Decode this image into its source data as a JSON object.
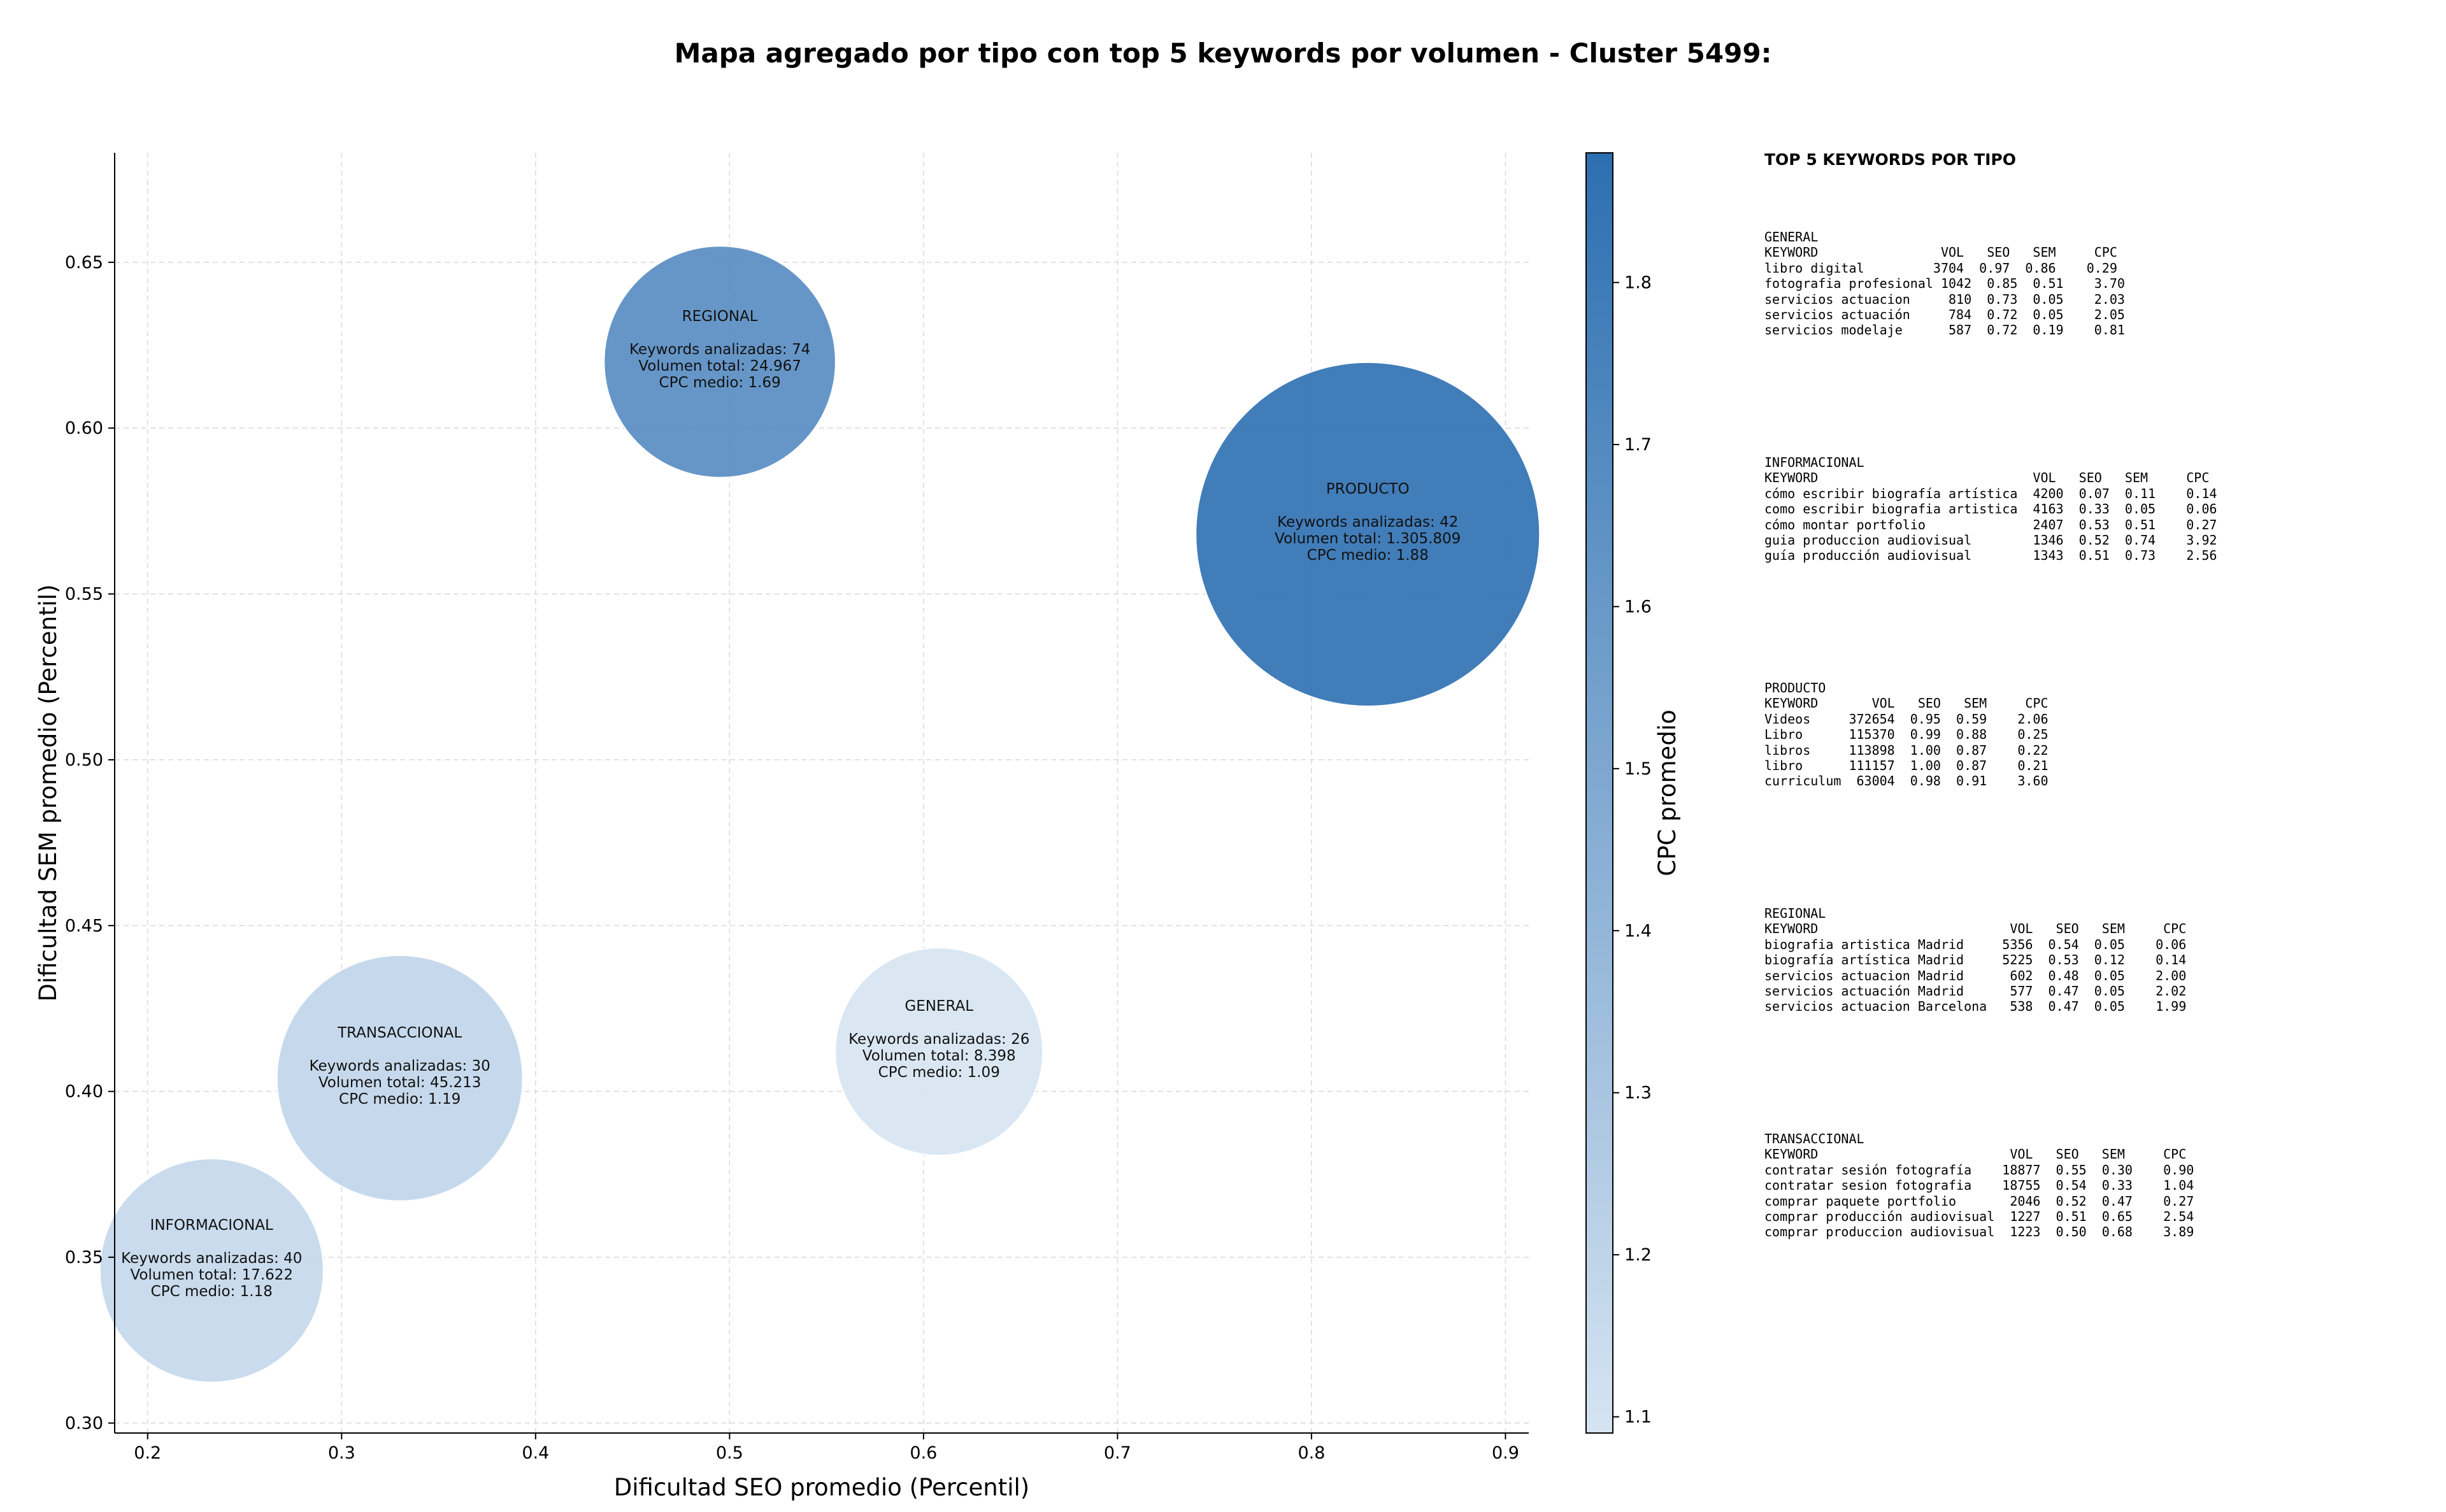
{
  "chart_data": {
    "type": "scatter",
    "title": "Mapa agregado por tipo con top 5 keywords por volumen - Cluster 5499:",
    "xlabel": "Dificultad SEO promedio (Percentil)",
    "ylabel": "Dificultad SEM promedio (Percentil)",
    "xlim": [
      0.183,
      0.912
    ],
    "ylim": [
      0.297,
      0.683
    ],
    "xticks": [
      0.2,
      0.3,
      0.4,
      0.5,
      0.6,
      0.7,
      0.8,
      0.9
    ],
    "yticks": [
      0.3,
      0.35,
      0.4,
      0.45,
      0.5,
      0.55,
      0.6,
      0.65
    ],
    "grid": true,
    "colorbar": {
      "label": "CPC promedio",
      "range": [
        1.09,
        1.88
      ],
      "ticks": [
        1.1,
        1.2,
        1.3,
        1.4,
        1.5,
        1.6,
        1.7,
        1.8
      ],
      "color_low": "#d6e4f2",
      "color_high": "#2c6fb1"
    },
    "points": [
      {
        "tipo": "REGIONAL",
        "x": 0.495,
        "y": 0.62,
        "keywords": 74,
        "volumen": 24967,
        "cpc": 1.69,
        "line_keywords": "Keywords analizadas: 74",
        "line_volumen": "Volumen total: 24.967",
        "line_cpc": "CPC medio: 1.69"
      },
      {
        "tipo": "PRODUCTO",
        "x": 0.829,
        "y": 0.568,
        "keywords": 42,
        "volumen": 1305809,
        "cpc": 1.88,
        "line_keywords": "Keywords analizadas: 42",
        "line_volumen": "Volumen total: 1.305.809",
        "line_cpc": "CPC medio: 1.88"
      },
      {
        "tipo": "TRANSACCIONAL",
        "x": 0.33,
        "y": 0.404,
        "keywords": 30,
        "volumen": 45213,
        "cpc": 1.19,
        "line_keywords": "Keywords analizadas: 30",
        "line_volumen": "Volumen total: 45.213",
        "line_cpc": "CPC medio: 1.19"
      },
      {
        "tipo": "GENERAL",
        "x": 0.608,
        "y": 0.412,
        "keywords": 26,
        "volumen": 8398,
        "cpc": 1.09,
        "line_keywords": "Keywords analizadas: 26",
        "line_volumen": "Volumen total: 8.398",
        "line_cpc": "CPC medio: 1.09"
      },
      {
        "tipo": "INFORMACIONAL",
        "x": 0.233,
        "y": 0.346,
        "keywords": 40,
        "volumen": 17622,
        "cpc": 1.18,
        "line_keywords": "Keywords analizadas: 40",
        "line_volumen": "Volumen total: 17.622",
        "line_cpc": "CPC medio: 1.18"
      }
    ]
  },
  "keywords_panel": {
    "title": "TOP 5 KEYWORDS POR TIPO",
    "blocks": [
      {
        "lines": [
          "GENERAL",
          "KEYWORD                VOL   SEO   SEM     CPC",
          "libro digital         3704  0.97  0.86    0.29",
          "fotografia profesional 1042  0.85  0.51    3.70",
          "servicios actuacion     810  0.73  0.05    2.03",
          "servicios actuación     784  0.72  0.05    2.05",
          "servicios modelaje      587  0.72  0.19    0.81"
        ]
      },
      {
        "lines": [
          "INFORMACIONAL",
          "KEYWORD                            VOL   SEO   SEM     CPC",
          "cómo escribir biografía artística  4200  0.07  0.11    0.14",
          "como escribir biografia artistica  4163  0.33  0.05    0.06",
          "cómo montar portfolio              2407  0.53  0.51    0.27",
          "guia produccion audiovisual        1346  0.52  0.74    3.92",
          "guía producción audiovisual        1343  0.51  0.73    2.56"
        ]
      },
      {
        "lines": [
          "PRODUCTO",
          "KEYWORD       VOL   SEO   SEM     CPC",
          "Videos     372654  0.95  0.59    2.06",
          "Libro      115370  0.99  0.88    0.25",
          "libros     113898  1.00  0.87    0.22",
          "libro      111157  1.00  0.87    0.21",
          "curriculum  63004  0.98  0.91    3.60"
        ]
      },
      {
        "lines": [
          "REGIONAL",
          "KEYWORD                         VOL   SEO   SEM     CPC",
          "biografia artistica Madrid     5356  0.54  0.05    0.06",
          "biografía artística Madrid     5225  0.53  0.12    0.14",
          "servicios actuacion Madrid      602  0.48  0.05    2.00",
          "servicios actuación Madrid      577  0.47  0.05    2.02",
          "servicios actuacion Barcelona   538  0.47  0.05    1.99"
        ]
      },
      {
        "lines": [
          "TRANSACCIONAL",
          "KEYWORD                         VOL   SEO   SEM     CPC",
          "contratar sesión fotografía    18877  0.55  0.30    0.90",
          "contratar sesion fotografia    18755  0.54  0.33    1.04",
          "comprar paquete portfolio       2046  0.52  0.47    0.27",
          "comprar producción audiovisual  1227  0.51  0.65    2.54",
          "comprar produccion audiovisual  1223  0.50  0.68    3.89"
        ]
      }
    ]
  }
}
